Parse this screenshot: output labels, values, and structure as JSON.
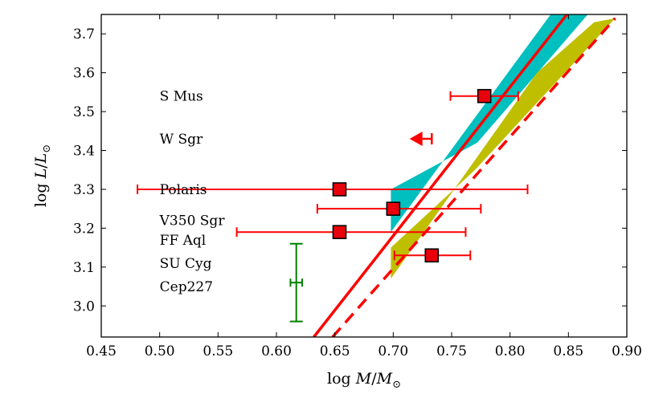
{
  "chart_data": {
    "type": "scatter",
    "xlabel": {
      "prefix": "log ",
      "var": "M",
      "sep": "/",
      "sub_var": "M",
      "sub": "⊙"
    },
    "ylabel": {
      "prefix": "log ",
      "var": "L",
      "sep": "/",
      "sub_var": "L",
      "sub": "⊙"
    },
    "xlim": [
      0.45,
      0.9
    ],
    "ylim": [
      2.92,
      3.75
    ],
    "xticks": [
      0.45,
      0.5,
      0.55,
      0.6,
      0.65,
      0.7,
      0.75,
      0.8,
      0.85,
      0.9
    ],
    "xtick_labels": [
      "0.45",
      "0.50",
      "0.55",
      "0.60",
      "0.65",
      "0.70",
      "0.75",
      "0.80",
      "0.85",
      "0.90"
    ],
    "yticks": [
      3.0,
      3.1,
      3.2,
      3.3,
      3.4,
      3.5,
      3.6,
      3.7
    ],
    "ytick_labels": [
      "3.0",
      "3.1",
      "3.2",
      "3.3",
      "3.4",
      "3.5",
      "3.6",
      "3.7"
    ],
    "star_labels": [
      {
        "text": "S Mus",
        "x": 0.5,
        "y": 3.54
      },
      {
        "text": "W Sgr",
        "x": 0.5,
        "y": 3.43
      },
      {
        "text": "Polaris",
        "x": 0.5,
        "y": 3.3
      },
      {
        "text": "V350 Sgr",
        "x": 0.5,
        "y": 3.22
      },
      {
        "text": "FF Aql",
        "x": 0.5,
        "y": 3.17
      },
      {
        "text": "SU Cyg",
        "x": 0.5,
        "y": 3.11
      },
      {
        "text": "Cep227",
        "x": 0.5,
        "y": 3.05
      }
    ],
    "points": [
      {
        "x": 0.778,
        "y": 3.54,
        "xerr_low": 0.749,
        "xerr_high": 0.807
      },
      {
        "x": 0.654,
        "y": 3.3,
        "xerr_low": 0.481,
        "xerr_high": 0.815
      },
      {
        "x": 0.7,
        "y": 3.25,
        "xerr_low": 0.635,
        "xerr_high": 0.775
      },
      {
        "x": 0.654,
        "y": 3.19,
        "xerr_low": 0.566,
        "xerr_high": 0.762
      },
      {
        "x": 0.733,
        "y": 3.13,
        "xerr_low": 0.701,
        "xerr_high": 0.766
      }
    ],
    "upper_limit": {
      "x": 0.733,
      "y": 3.43,
      "tail_x": 0.725
    },
    "cep227_point": {
      "x": 0.617,
      "y": 3.06,
      "xerr": [
        0.612,
        0.622
      ],
      "yerr": [
        2.96,
        3.16
      ]
    },
    "solid_line": {
      "x": [
        0.632,
        0.85
      ],
      "y": [
        2.92,
        3.755
      ]
    },
    "dashed_line": {
      "x": [
        0.648,
        0.89
      ],
      "y": [
        2.92,
        3.74
      ]
    },
    "cyan_band": {
      "x": [
        0.698,
        0.836,
        0.868,
        0.772,
        0.698
      ],
      "y": [
        3.19,
        3.755,
        3.755,
        3.42,
        3.3
      ]
    },
    "olive_band": {
      "x": [
        0.698,
        0.823,
        0.872,
        0.89,
        0.77,
        0.698
      ],
      "y": [
        3.07,
        3.6,
        3.73,
        3.74,
        3.35,
        3.15
      ]
    },
    "colors": {
      "red": "#ff0000",
      "marker": "#e8000b",
      "cyan": "#00bfbf",
      "olive": "#bfbf00",
      "green": "#008000"
    }
  }
}
